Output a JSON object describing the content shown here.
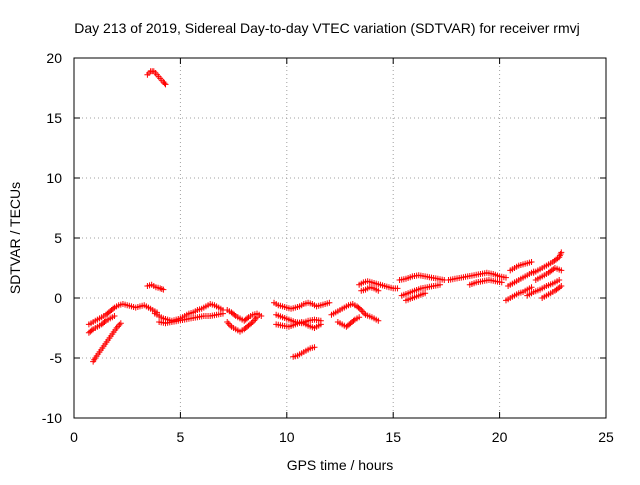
{
  "chart_data": {
    "type": "scatter",
    "title": "Day 213 of 2019, Sidereal Day-to-day VTEC variation (SDTVAR) for receiver rmvj",
    "xlabel": "GPS time / hours",
    "ylabel": "SDTVAR / TECUs",
    "xlim": [
      0,
      25
    ],
    "ylim": [
      -10,
      20
    ],
    "xticks": [
      0,
      5,
      10,
      15,
      20,
      25
    ],
    "yticks": [
      -10,
      -5,
      0,
      5,
      10,
      15,
      20
    ],
    "grid": true,
    "marker": "plus",
    "series": [
      {
        "name": "SDTVAR",
        "color": "#ff0000",
        "segments": [
          {
            "x": [
              3.45,
              3.6,
              3.75,
              3.9,
              4.05,
              4.2,
              4.3
            ],
            "y": [
              18.6,
              18.9,
              18.9,
              18.6,
              18.3,
              18.0,
              17.8
            ]
          },
          {
            "x": [
              3.45,
              3.65,
              3.85,
              4.05,
              4.2
            ],
            "y": [
              1.0,
              1.1,
              0.9,
              0.8,
              0.7
            ]
          },
          {
            "x": [
              0.9,
              1.0,
              1.2,
              1.4,
              1.6,
              1.8,
              2.0,
              2.2
            ],
            "y": [
              -5.3,
              -5.0,
              -4.5,
              -4.0,
              -3.5,
              -3.0,
              -2.5,
              -2.1
            ]
          },
          {
            "x": [
              0.7,
              0.9,
              1.1,
              1.3,
              1.5,
              1.7,
              1.9,
              2.1,
              2.3,
              2.5,
              2.7,
              2.9,
              3.1,
              3.3,
              3.5,
              3.7,
              3.9
            ],
            "y": [
              -2.2,
              -2.0,
              -1.8,
              -1.6,
              -1.4,
              -1.1,
              -0.8,
              -0.6,
              -0.5,
              -0.6,
              -0.7,
              -0.8,
              -0.7,
              -0.6,
              -0.8,
              -1.0,
              -1.2
            ]
          },
          {
            "x": [
              0.7,
              0.9,
              1.1,
              1.3,
              1.5,
              1.7,
              1.9
            ],
            "y": [
              -2.9,
              -2.6,
              -2.4,
              -2.2,
              -1.9,
              -1.7,
              -1.5
            ]
          },
          {
            "x": [
              3.8,
              4.0,
              4.2,
              4.4,
              4.6,
              4.8,
              5.0,
              5.2,
              5.4,
              5.6,
              5.8,
              6.0,
              6.2,
              6.4,
              6.6,
              6.8,
              7.0
            ],
            "y": [
              -1.3,
              -1.5,
              -1.7,
              -1.8,
              -1.9,
              -1.8,
              -1.7,
              -1.5,
              -1.3,
              -1.2,
              -1.0,
              -0.9,
              -0.7,
              -0.5,
              -0.6,
              -0.8,
              -1.0
            ]
          },
          {
            "x": [
              4.0,
              4.3,
              4.6,
              4.9,
              5.2,
              5.5,
              5.8,
              6.1,
              6.4,
              6.7,
              7.0
            ],
            "y": [
              -2.0,
              -2.1,
              -2.0,
              -1.9,
              -1.8,
              -1.7,
              -1.6,
              -1.5,
              -1.5,
              -1.4,
              -1.3
            ]
          },
          {
            "x": [
              7.2,
              7.4,
              7.6,
              7.8,
              8.0,
              8.2,
              8.4,
              8.6
            ],
            "y": [
              -2.0,
              -2.4,
              -2.6,
              -2.8,
              -2.6,
              -2.3,
              -2.0,
              -1.6
            ]
          },
          {
            "x": [
              7.2,
              7.4,
              7.6,
              7.8,
              8.0,
              8.2,
              8.4,
              8.6,
              8.8
            ],
            "y": [
              -1.0,
              -1.2,
              -1.5,
              -1.7,
              -1.9,
              -1.6,
              -1.4,
              -1.3,
              -1.5
            ]
          },
          {
            "x": [
              9.4,
              9.6,
              9.8,
              10.0,
              10.2,
              10.4,
              10.6,
              10.8,
              11.0,
              11.2,
              11.4,
              11.6,
              11.8,
              12.0
            ],
            "y": [
              -0.4,
              -0.6,
              -0.7,
              -0.8,
              -0.9,
              -0.8,
              -0.7,
              -0.5,
              -0.4,
              -0.5,
              -0.7,
              -0.6,
              -0.5,
              -0.4
            ]
          },
          {
            "x": [
              9.5,
              9.8,
              10.1,
              10.4,
              10.7,
              11.0,
              11.3,
              11.6
            ],
            "y": [
              -1.4,
              -1.6,
              -1.8,
              -2.0,
              -2.1,
              -1.9,
              -1.8,
              -1.9
            ]
          },
          {
            "x": [
              9.5,
              9.8,
              10.1,
              10.4,
              10.7,
              11.0,
              11.3,
              11.6
            ],
            "y": [
              -2.2,
              -2.3,
              -2.4,
              -2.2,
              -2.0,
              -2.3,
              -2.5,
              -2.2
            ]
          },
          {
            "x": [
              10.3,
              10.5,
              10.7,
              10.9,
              11.1,
              11.3
            ],
            "y": [
              -4.9,
              -4.8,
              -4.6,
              -4.4,
              -4.2,
              -4.1
            ]
          },
          {
            "x": [
              12.1,
              12.3,
              12.5,
              12.7,
              12.9,
              13.1,
              13.3,
              13.5,
              13.7,
              14.0,
              14.3
            ],
            "y": [
              -1.4,
              -1.2,
              -1.0,
              -0.8,
              -0.6,
              -0.5,
              -0.7,
              -1.0,
              -1.4,
              -1.6,
              -1.9
            ]
          },
          {
            "x": [
              12.4,
              12.6,
              12.8,
              13.0,
              13.2,
              13.4
            ],
            "y": [
              -2.0,
              -2.2,
              -2.4,
              -2.1,
              -1.8,
              -1.6
            ]
          },
          {
            "x": [
              13.4,
              13.6,
              13.8,
              14.0,
              14.2,
              14.4,
              14.6,
              14.8,
              15.0,
              15.2
            ],
            "y": [
              1.1,
              1.3,
              1.4,
              1.3,
              1.2,
              1.1,
              1.0,
              0.9,
              0.8,
              0.8
            ]
          },
          {
            "x": [
              13.5,
              13.7,
              13.9,
              14.1,
              14.3
            ],
            "y": [
              0.6,
              0.7,
              0.9,
              0.8,
              0.6
            ]
          },
          {
            "x": [
              15.3,
              15.6,
              15.9,
              16.2,
              16.5,
              16.8,
              17.1,
              17.4
            ],
            "y": [
              1.5,
              1.6,
              1.8,
              1.9,
              1.8,
              1.7,
              1.6,
              1.5
            ]
          },
          {
            "x": [
              15.4,
              15.7,
              16.0,
              16.3,
              16.6,
              16.9,
              17.2
            ],
            "y": [
              0.2,
              0.4,
              0.6,
              0.8,
              0.9,
              1.0,
              1.1
            ]
          },
          {
            "x": [
              15.6,
              15.9,
              16.2,
              16.5
            ],
            "y": [
              -0.2,
              0.0,
              0.2,
              0.4
            ]
          },
          {
            "x": [
              17.6,
              17.9,
              18.2,
              18.5,
              18.8,
              19.1,
              19.4,
              19.7,
              20.0,
              20.3
            ],
            "y": [
              1.5,
              1.6,
              1.7,
              1.8,
              1.9,
              2.0,
              2.1,
              2.0,
              1.8,
              1.7
            ]
          },
          {
            "x": [
              18.6,
              18.9,
              19.2,
              19.5,
              19.8,
              20.1
            ],
            "y": [
              1.1,
              1.3,
              1.4,
              1.5,
              1.4,
              1.3
            ]
          },
          {
            "x": [
              20.5,
              20.7,
              20.9,
              21.1,
              21.3,
              21.5
            ],
            "y": [
              2.3,
              2.5,
              2.7,
              2.8,
              2.9,
              3.0
            ]
          },
          {
            "x": [
              20.4,
              20.6,
              20.8,
              21.0,
              21.2,
              21.4,
              21.6
            ],
            "y": [
              1.0,
              1.2,
              1.4,
              1.6,
              1.8,
              2.0,
              2.2
            ]
          },
          {
            "x": [
              20.3,
              20.5,
              20.7,
              20.9,
              21.1,
              21.3,
              21.5
            ],
            "y": [
              -0.2,
              0.0,
              0.2,
              0.4,
              0.5,
              0.7,
              0.9
            ]
          },
          {
            "x": [
              21.3,
              21.6,
              21.9,
              22.2,
              22.5,
              22.8
            ],
            "y": [
              0.2,
              0.5,
              0.7,
              1.0,
              1.2,
              1.5
            ]
          },
          {
            "x": [
              21.6,
              21.9,
              22.2,
              22.5,
              22.8,
              22.9
            ],
            "y": [
              2.1,
              2.4,
              2.7,
              3.0,
              3.4,
              3.8
            ]
          },
          {
            "x": [
              21.7,
              22.0,
              22.3,
              22.6,
              22.9
            ],
            "y": [
              1.5,
              1.8,
              2.1,
              2.5,
              2.3
            ]
          },
          {
            "x": [
              22.0,
              22.3,
              22.6,
              22.9
            ],
            "y": [
              0.0,
              0.3,
              0.6,
              1.0
            ]
          }
        ]
      }
    ]
  }
}
